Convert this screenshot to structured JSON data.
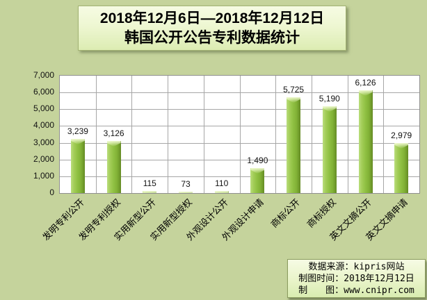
{
  "title": {
    "line1": "2018年12月6日—2018年12月12日",
    "line2": "韩国公开公告专利数据统计"
  },
  "chart_data": {
    "type": "bar",
    "title": "2018年12月6日—2018年12月12日 韩国公开公告专利数据统计",
    "categories": [
      "发明专利公开",
      "发明专利授权",
      "实用新型公开",
      "实用新型授权",
      "外观设计公开",
      "外观设计申请",
      "商标公开",
      "商标授权",
      "英文文摘公开",
      "英文文摘申请"
    ],
    "values": [
      3239,
      3126,
      115,
      73,
      110,
      1490,
      5725,
      5190,
      6126,
      2979
    ],
    "value_labels": [
      "3,239",
      "3,126",
      "115",
      "73",
      "110",
      "1,490",
      "5,725",
      "5,190",
      "6,126",
      "2,979"
    ],
    "y_ticks": [
      "0",
      "1,000",
      "2,000",
      "3,000",
      "4,000",
      "5,000",
      "6,000",
      "7,000"
    ],
    "ylim": [
      0,
      7000
    ],
    "grid": true,
    "legend": "none",
    "xlabel": "",
    "ylabel": "",
    "bar_color": "#8fc042"
  },
  "footer": {
    "source": "数据来源：kipris网站",
    "date": "制图时间：2018年12月12日",
    "maker": "制　　图：www.cnipr.com"
  },
  "colors": {
    "background": "#c5d39c",
    "plot_background": "#ffffff",
    "gridline": "#a6a6a6",
    "bar": "#8fc042",
    "text": "#000000"
  }
}
